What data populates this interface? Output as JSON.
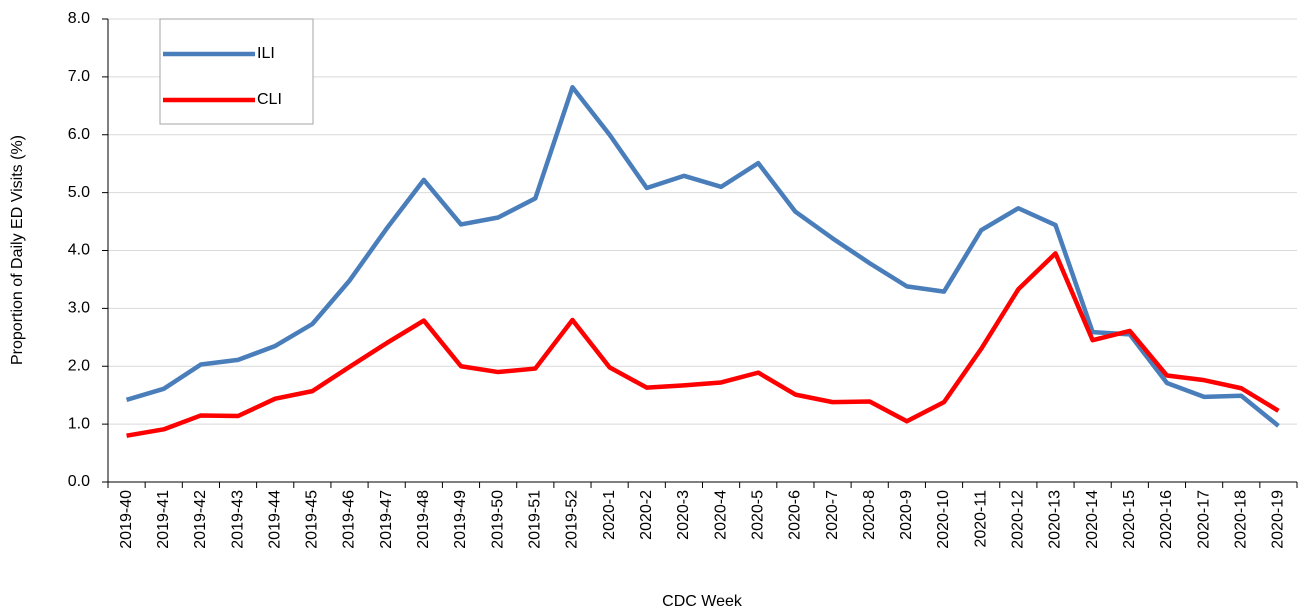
{
  "chart_data": {
    "type": "line",
    "x_label": "CDC Week",
    "y_label": "Proportion of Daily ED Visits (%)",
    "categories": [
      "2019-40",
      "2019-41",
      "2019-42",
      "2019-43",
      "2019-44",
      "2019-45",
      "2019-46",
      "2019-47",
      "2019-48",
      "2019-49",
      "2019-50",
      "2019-51",
      "2019-52",
      "2020-1",
      "2020-2",
      "2020-3",
      "2020-4",
      "2020-5",
      "2020-6",
      "2020-7",
      "2020-8",
      "2020-9",
      "2020-10",
      "2020-11",
      "2020-12",
      "2020-13",
      "2020-14",
      "2020-15",
      "2020-16",
      "2020-17",
      "2020-18",
      "2020-19"
    ],
    "series": [
      {
        "name": "ILI",
        "color": "#4a7ebb",
        "values": [
          1.42,
          1.61,
          2.03,
          2.11,
          2.35,
          2.73,
          3.48,
          4.38,
          5.22,
          4.45,
          4.57,
          4.9,
          6.82,
          6.0,
          5.08,
          5.29,
          5.1,
          5.51,
          4.67,
          4.21,
          3.78,
          3.38,
          3.29,
          4.35,
          4.73,
          4.44,
          2.59,
          2.55,
          1.71,
          1.47,
          1.49,
          0.97
        ]
      },
      {
        "name": "CLI",
        "color": "#ff0000",
        "values": [
          0.8,
          0.91,
          1.15,
          1.14,
          1.44,
          1.57,
          1.99,
          2.4,
          2.79,
          2.0,
          1.9,
          1.96,
          2.8,
          1.98,
          1.63,
          1.67,
          1.72,
          1.89,
          1.51,
          1.38,
          1.39,
          1.05,
          1.38,
          2.3,
          3.33,
          3.95,
          2.45,
          2.61,
          1.84,
          1.76,
          1.62,
          1.23
        ]
      }
    ],
    "ylim": [
      0,
      8
    ],
    "yticks": [
      {
        "value": 0,
        "label": "0.0"
      },
      {
        "value": 1,
        "label": "1.0"
      },
      {
        "value": 2,
        "label": "2.0"
      },
      {
        "value": 3,
        "label": "3.0"
      },
      {
        "value": 4,
        "label": "4.0"
      },
      {
        "value": 5,
        "label": "5.0"
      },
      {
        "value": 6,
        "label": "6.0"
      },
      {
        "value": 7,
        "label": "7.0"
      },
      {
        "value": 8,
        "label": "8.0"
      }
    ],
    "grid": true,
    "legend": "upper left"
  }
}
